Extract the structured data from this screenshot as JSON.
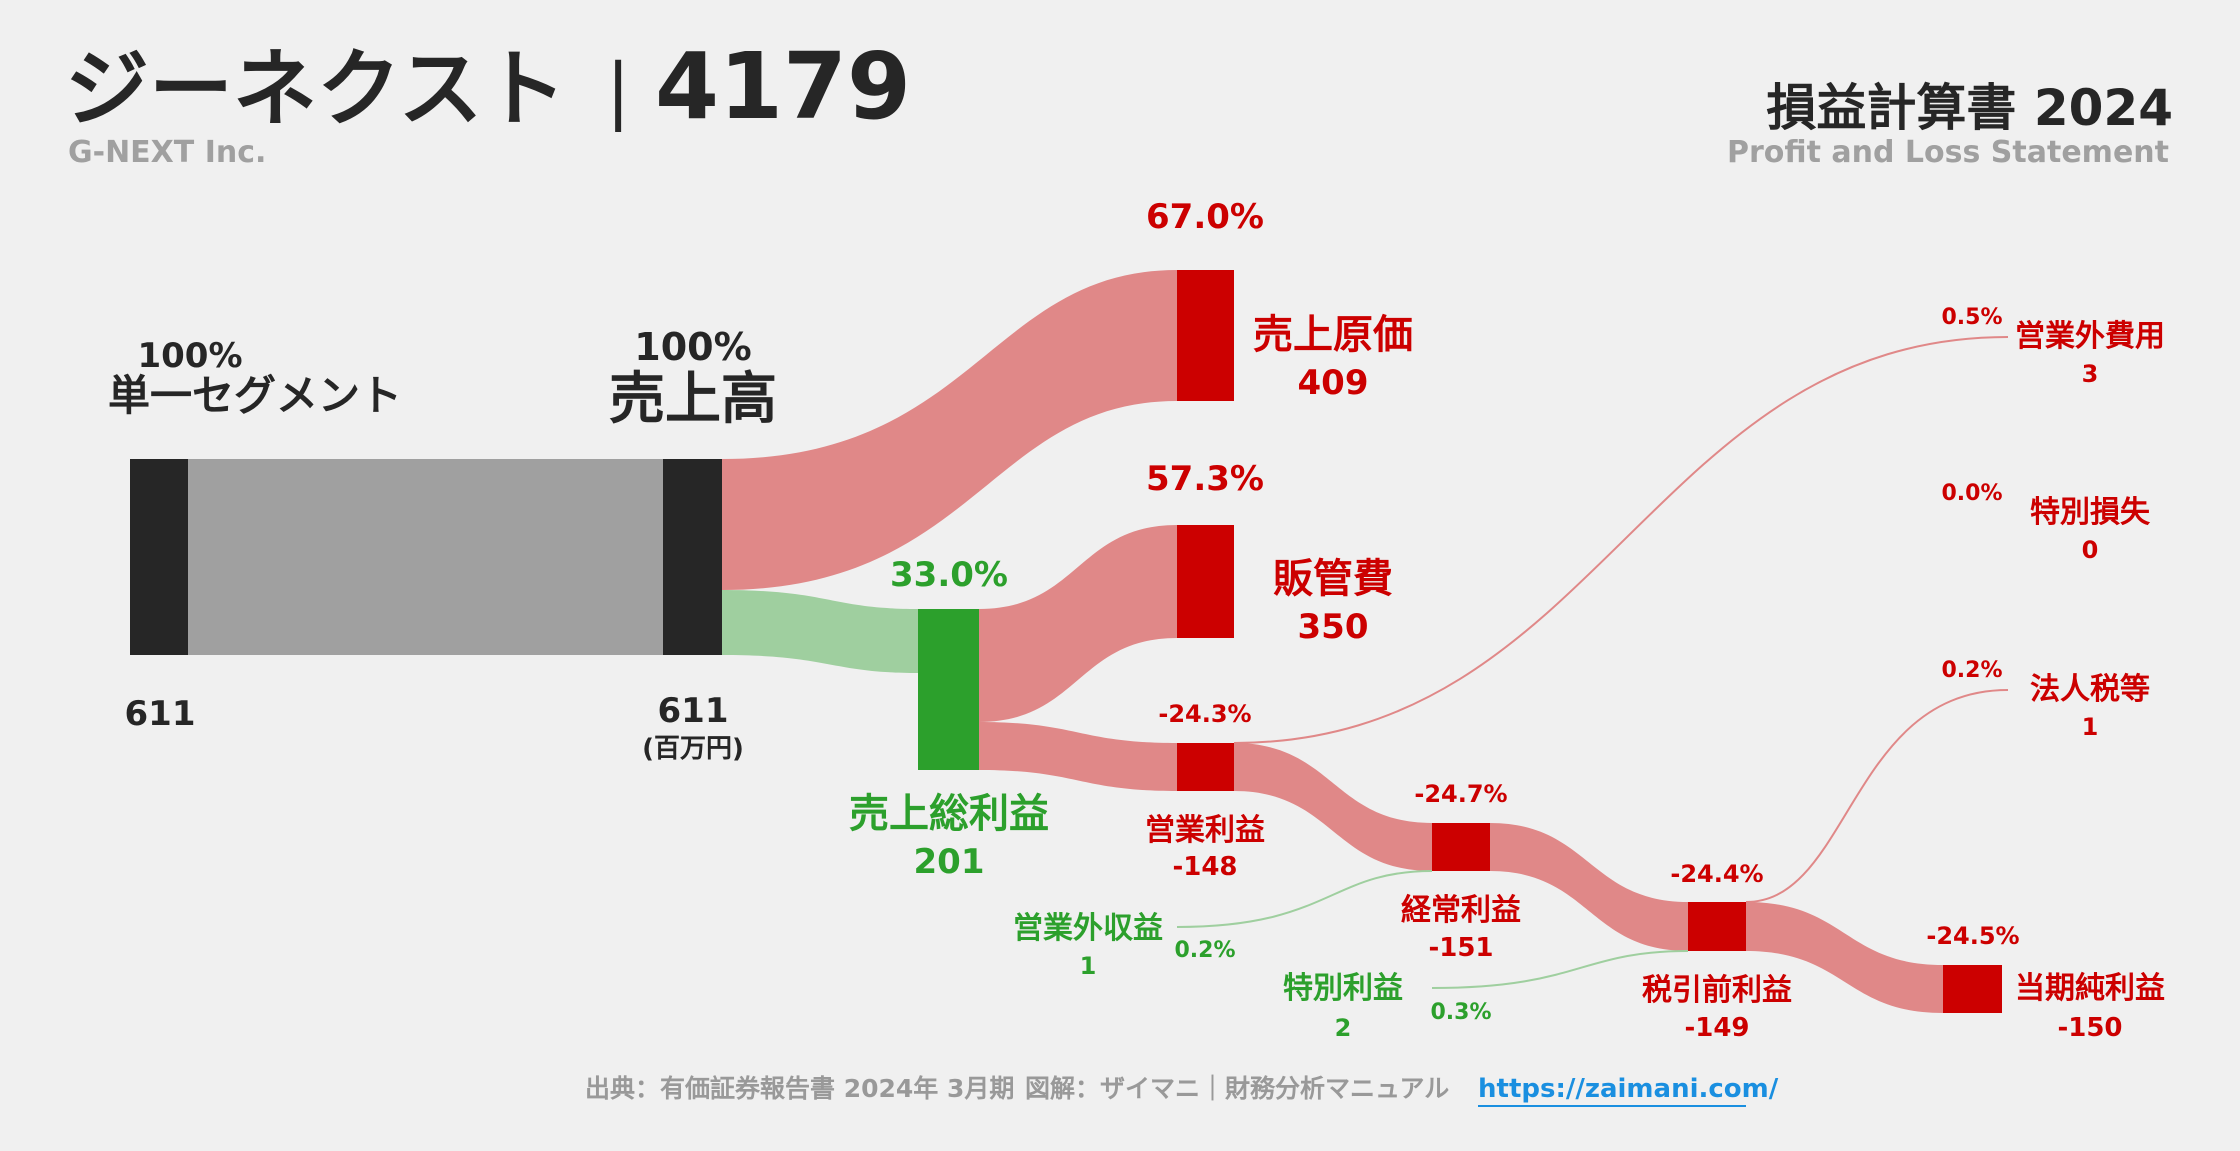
{
  "header": {
    "company": "ジーネクスト",
    "separator": "|",
    "code": "4179",
    "company_en": "G-NEXT Inc.",
    "report_title": "損益計算書 2024",
    "report_subtitle": "Profit and Loss Statement"
  },
  "footer": {
    "source": "出典：有価証券報告書 2024年 3月期",
    "credit": "図解：ザイマニ｜財務分析マニュアル",
    "url": "https://zaimani.com/"
  },
  "colors": {
    "dark": "#262626",
    "gray_flow": "#a0a0a0",
    "red": "#cc0000",
    "red_flow": "#e08888",
    "green": "#2ca02c",
    "green_flow": "#9fcf9f",
    "text_gray": "#999999"
  },
  "chart_data": {
    "type": "sankey",
    "unit": "(百万円)",
    "nodes": [
      {
        "id": "segment",
        "name": "単一セグメント",
        "value": 611,
        "pct": "100%",
        "kind": "source"
      },
      {
        "id": "revenue",
        "name": "売上高",
        "value": 611,
        "pct": "100%",
        "kind": "total"
      },
      {
        "id": "cogs",
        "name": "売上原価",
        "value": 409,
        "pct": "67.0%",
        "kind": "cost"
      },
      {
        "id": "gross",
        "name": "売上総利益",
        "value": 201,
        "pct": "33.0%",
        "kind": "profit"
      },
      {
        "id": "sga",
        "name": "販管費",
        "value": 350,
        "pct": "57.3%",
        "kind": "cost"
      },
      {
        "id": "op",
        "name": "営業利益",
        "value": -148,
        "pct": "-24.3%",
        "kind": "loss"
      },
      {
        "id": "nonop_inc",
        "name": "営業外収益",
        "value": 1,
        "pct": "0.2%",
        "kind": "gain"
      },
      {
        "id": "nonop_exp",
        "name": "営業外費用",
        "value": 3,
        "pct": "0.5%",
        "kind": "cost"
      },
      {
        "id": "ordinary",
        "name": "経常利益",
        "value": -151,
        "pct": "-24.7%",
        "kind": "loss"
      },
      {
        "id": "special_gain",
        "name": "特別利益",
        "value": 2,
        "pct": "0.3%",
        "kind": "gain"
      },
      {
        "id": "special_loss",
        "name": "特別損失",
        "value": 0,
        "pct": "0.0%",
        "kind": "cost"
      },
      {
        "id": "pretax",
        "name": "税引前利益",
        "value": -149,
        "pct": "-24.4%",
        "kind": "loss"
      },
      {
        "id": "tax",
        "name": "法人税等",
        "value": 1,
        "pct": "0.2%",
        "kind": "cost"
      },
      {
        "id": "net",
        "name": "当期純利益",
        "value": -150,
        "pct": "-24.5%",
        "kind": "loss"
      }
    ],
    "links": [
      {
        "source": "segment",
        "target": "revenue",
        "value": 611
      },
      {
        "source": "revenue",
        "target": "cogs",
        "value": 409
      },
      {
        "source": "revenue",
        "target": "gross",
        "value": 201
      },
      {
        "source": "gross",
        "target": "sga",
        "value": 350
      },
      {
        "source": "gross",
        "target": "op",
        "value": 148
      },
      {
        "source": "op",
        "target": "nonop_exp",
        "value": 3
      },
      {
        "source": "op",
        "target": "ordinary",
        "value": 151
      },
      {
        "source": "nonop_inc",
        "target": "ordinary",
        "value": 1
      },
      {
        "source": "ordinary",
        "target": "pretax",
        "value": 149
      },
      {
        "source": "special_gain",
        "target": "pretax",
        "value": 2
      },
      {
        "source": "pretax",
        "target": "tax",
        "value": 1
      },
      {
        "source": "pretax",
        "target": "net",
        "value": 150
      }
    ]
  }
}
